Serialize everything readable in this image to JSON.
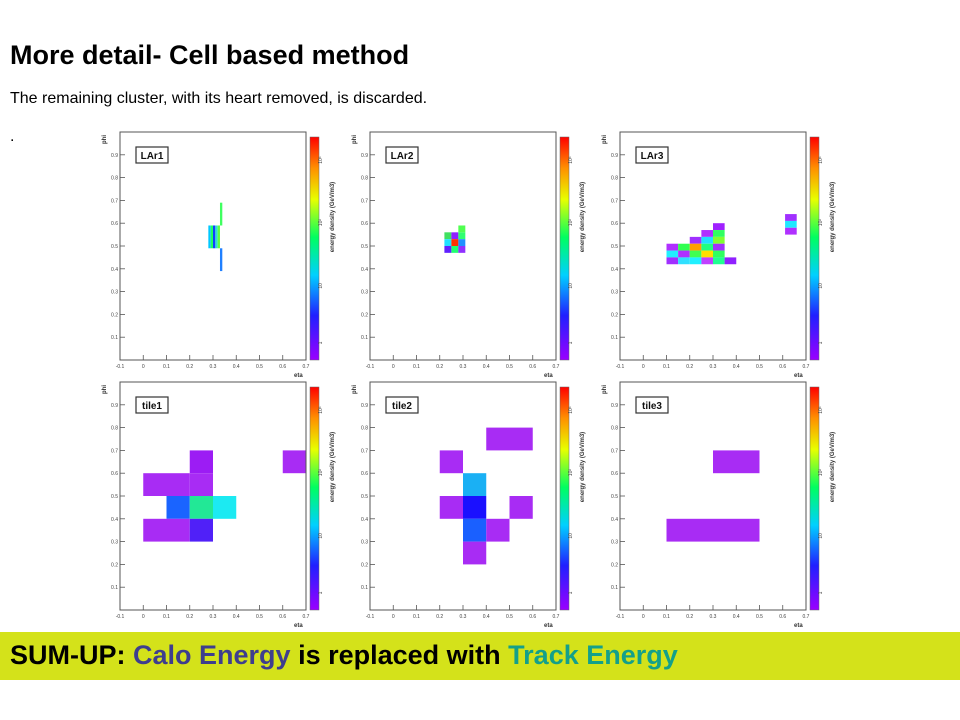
{
  "slide": {
    "title": "More detail- Cell based method",
    "subtitle": "The remaining cluster, with its heart removed, is discarded.",
    "bullet_dot": "."
  },
  "summary": {
    "prefix": "SUM-UP:",
    "calo": "Calo Energy",
    "middle": "is replaced with",
    "track": "Track Energy",
    "colors": {
      "banner": "#d4e21a",
      "calo": "#3e3e8e",
      "track": "#14a08a"
    }
  },
  "chart_data": [
    {
      "type": "heatmap",
      "title": "LAr1",
      "xlabel": "eta",
      "ylabel": "phi",
      "zlabel": "energy density (GeV/m3)",
      "xlim": [
        -0.1,
        0.7
      ],
      "ylim": [
        0,
        1.0
      ],
      "xticks": [
        -0.1,
        0,
        0.1,
        0.2,
        0.3,
        0.4,
        0.5,
        0.6,
        0.7
      ],
      "yticks": [
        0.1,
        0.2,
        0.3,
        0.4,
        0.5,
        0.6,
        0.7,
        0.8,
        0.9
      ],
      "colorbar_ticks": [
        "1",
        "10",
        "10²",
        "10³"
      ],
      "cells": [
        {
          "eta0": 0.28,
          "eta1": 0.29,
          "phi0": 0.49,
          "phi1": 0.59,
          "color": "#00c8ff"
        },
        {
          "eta0": 0.29,
          "eta1": 0.3,
          "phi0": 0.49,
          "phi1": 0.59,
          "color": "#20ff60"
        },
        {
          "eta0": 0.3,
          "eta1": 0.31,
          "phi0": 0.49,
          "phi1": 0.59,
          "color": "#1040ff"
        },
        {
          "eta0": 0.31,
          "eta1": 0.32,
          "phi0": 0.49,
          "phi1": 0.59,
          "color": "#30e0d0"
        },
        {
          "eta0": 0.32,
          "eta1": 0.33,
          "phi0": 0.49,
          "phi1": 0.59,
          "color": "#60ff40"
        },
        {
          "eta0": 0.33,
          "eta1": 0.34,
          "phi0": 0.59,
          "phi1": 0.69,
          "color": "#40ff60"
        },
        {
          "eta0": 0.33,
          "eta1": 0.34,
          "phi0": 0.39,
          "phi1": 0.49,
          "color": "#2080ff"
        }
      ]
    },
    {
      "type": "heatmap",
      "title": "LAr2",
      "xlabel": "eta",
      "ylabel": "phi",
      "zlabel": "energy density (GeV/m3)",
      "xlim": [
        -0.1,
        0.7
      ],
      "ylim": [
        0,
        1.0
      ],
      "xticks": [
        -0.1,
        0,
        0.1,
        0.2,
        0.3,
        0.4,
        0.5,
        0.6,
        0.7
      ],
      "yticks": [
        0.1,
        0.2,
        0.3,
        0.4,
        0.5,
        0.6,
        0.7,
        0.8,
        0.9
      ],
      "colorbar_ticks": [
        "1",
        "10",
        "10²",
        "10³"
      ],
      "cells": [
        {
          "eta0": 0.22,
          "eta1": 0.25,
          "phi0": 0.53,
          "phi1": 0.56,
          "color": "#40e060"
        },
        {
          "eta0": 0.25,
          "eta1": 0.28,
          "phi0": 0.53,
          "phi1": 0.56,
          "color": "#9020ff"
        },
        {
          "eta0": 0.28,
          "eta1": 0.31,
          "phi0": 0.53,
          "phi1": 0.56,
          "color": "#30ff70"
        },
        {
          "eta0": 0.28,
          "eta1": 0.31,
          "phi0": 0.56,
          "phi1": 0.59,
          "color": "#50ff50"
        },
        {
          "eta0": 0.22,
          "eta1": 0.25,
          "phi0": 0.5,
          "phi1": 0.53,
          "color": "#20e0ff"
        },
        {
          "eta0": 0.25,
          "eta1": 0.28,
          "phi0": 0.5,
          "phi1": 0.53,
          "color": "#ff3000"
        },
        {
          "eta0": 0.28,
          "eta1": 0.31,
          "phi0": 0.5,
          "phi1": 0.53,
          "color": "#2090ff"
        },
        {
          "eta0": 0.22,
          "eta1": 0.25,
          "phi0": 0.47,
          "phi1": 0.5,
          "color": "#6020ff"
        },
        {
          "eta0": 0.25,
          "eta1": 0.28,
          "phi0": 0.47,
          "phi1": 0.5,
          "color": "#20ff70"
        },
        {
          "eta0": 0.28,
          "eta1": 0.31,
          "phi0": 0.47,
          "phi1": 0.5,
          "color": "#9030ff"
        }
      ]
    },
    {
      "type": "heatmap",
      "title": "LAr3",
      "xlabel": "eta",
      "ylabel": "phi",
      "zlabel": "energy density (GeV/m3)",
      "xlim": [
        -0.1,
        0.7
      ],
      "ylim": [
        0,
        1.0
      ],
      "xticks": [
        -0.1,
        0,
        0.1,
        0.2,
        0.3,
        0.4,
        0.5,
        0.6,
        0.7
      ],
      "yticks": [
        0.1,
        0.2,
        0.3,
        0.4,
        0.5,
        0.6,
        0.7,
        0.8,
        0.9
      ],
      "colorbar_ticks": [
        "1",
        "10",
        "10²",
        "10³"
      ],
      "cells": [
        {
          "eta0": 0.3,
          "eta1": 0.35,
          "phi0": 0.57,
          "phi1": 0.6,
          "color": "#a020ff"
        },
        {
          "eta0": 0.25,
          "eta1": 0.3,
          "phi0": 0.54,
          "phi1": 0.57,
          "color": "#b030ff"
        },
        {
          "eta0": 0.3,
          "eta1": 0.35,
          "phi0": 0.54,
          "phi1": 0.57,
          "color": "#30ff60"
        },
        {
          "eta0": 0.2,
          "eta1": 0.25,
          "phi0": 0.51,
          "phi1": 0.54,
          "color": "#a030ff"
        },
        {
          "eta0": 0.25,
          "eta1": 0.3,
          "phi0": 0.51,
          "phi1": 0.54,
          "color": "#20e0ff"
        },
        {
          "eta0": 0.3,
          "eta1": 0.35,
          "phi0": 0.51,
          "phi1": 0.54,
          "color": "#80ff30"
        },
        {
          "eta0": 0.1,
          "eta1": 0.15,
          "phi0": 0.48,
          "phi1": 0.51,
          "color": "#b030ff"
        },
        {
          "eta0": 0.15,
          "eta1": 0.2,
          "phi0": 0.48,
          "phi1": 0.51,
          "color": "#30ff50"
        },
        {
          "eta0": 0.2,
          "eta1": 0.25,
          "phi0": 0.48,
          "phi1": 0.51,
          "color": "#ffa000"
        },
        {
          "eta0": 0.25,
          "eta1": 0.3,
          "phi0": 0.48,
          "phi1": 0.51,
          "color": "#20ff80"
        },
        {
          "eta0": 0.3,
          "eta1": 0.35,
          "phi0": 0.48,
          "phi1": 0.51,
          "color": "#a030ff"
        },
        {
          "eta0": 0.1,
          "eta1": 0.15,
          "phi0": 0.45,
          "phi1": 0.48,
          "color": "#20f0ff"
        },
        {
          "eta0": 0.15,
          "eta1": 0.2,
          "phi0": 0.45,
          "phi1": 0.48,
          "color": "#b030ff"
        },
        {
          "eta0": 0.2,
          "eta1": 0.25,
          "phi0": 0.45,
          "phi1": 0.48,
          "color": "#40ff50"
        },
        {
          "eta0": 0.25,
          "eta1": 0.3,
          "phi0": 0.45,
          "phi1": 0.48,
          "color": "#ffe000"
        },
        {
          "eta0": 0.3,
          "eta1": 0.35,
          "phi0": 0.45,
          "phi1": 0.48,
          "color": "#30ff60"
        },
        {
          "eta0": 0.1,
          "eta1": 0.15,
          "phi0": 0.42,
          "phi1": 0.45,
          "color": "#a030ff"
        },
        {
          "eta0": 0.15,
          "eta1": 0.2,
          "phi0": 0.42,
          "phi1": 0.45,
          "color": "#30e0ff"
        },
        {
          "eta0": 0.2,
          "eta1": 0.25,
          "phi0": 0.42,
          "phi1": 0.45,
          "color": "#20f0ff"
        },
        {
          "eta0": 0.25,
          "eta1": 0.3,
          "phi0": 0.42,
          "phi1": 0.45,
          "color": "#c040ff"
        },
        {
          "eta0": 0.3,
          "eta1": 0.35,
          "phi0": 0.42,
          "phi1": 0.45,
          "color": "#20ff90"
        },
        {
          "eta0": 0.35,
          "eta1": 0.4,
          "phi0": 0.42,
          "phi1": 0.45,
          "color": "#9020ff"
        },
        {
          "eta0": 0.61,
          "eta1": 0.66,
          "phi0": 0.61,
          "phi1": 0.64,
          "color": "#a030ff"
        },
        {
          "eta0": 0.61,
          "eta1": 0.66,
          "phi0": 0.58,
          "phi1": 0.61,
          "color": "#20e8ff"
        },
        {
          "eta0": 0.61,
          "eta1": 0.66,
          "phi0": 0.55,
          "phi1": 0.58,
          "color": "#b030ff"
        }
      ]
    },
    {
      "type": "heatmap",
      "title": "tile1",
      "xlabel": "eta",
      "ylabel": "phi",
      "zlabel": "energy density (GeV/m3)",
      "xlim": [
        -0.1,
        0.7
      ],
      "ylim": [
        0,
        1.0
      ],
      "xticks": [
        -0.1,
        0,
        0.1,
        0.2,
        0.3,
        0.4,
        0.5,
        0.6,
        0.7
      ],
      "yticks": [
        0.1,
        0.2,
        0.3,
        0.4,
        0.5,
        0.6,
        0.7,
        0.8,
        0.9
      ],
      "colorbar_ticks": [
        "1",
        "10",
        "10²",
        "10³"
      ],
      "cells": [
        {
          "eta0": 0.2,
          "eta1": 0.3,
          "phi0": 0.6,
          "phi1": 0.7,
          "color": "#9c1cf4"
        },
        {
          "eta0": 0.0,
          "eta1": 0.1,
          "phi0": 0.5,
          "phi1": 0.6,
          "color": "#a82cf4"
        },
        {
          "eta0": 0.1,
          "eta1": 0.2,
          "phi0": 0.5,
          "phi1": 0.6,
          "color": "#a82cf4"
        },
        {
          "eta0": 0.2,
          "eta1": 0.3,
          "phi0": 0.5,
          "phi1": 0.6,
          "color": "#a82cf4"
        },
        {
          "eta0": 0.1,
          "eta1": 0.2,
          "phi0": 0.4,
          "phi1": 0.5,
          "color": "#1a64ff"
        },
        {
          "eta0": 0.2,
          "eta1": 0.3,
          "phi0": 0.4,
          "phi1": 0.5,
          "color": "#22e896"
        },
        {
          "eta0": 0.3,
          "eta1": 0.4,
          "phi0": 0.4,
          "phi1": 0.5,
          "color": "#1ceaf2"
        },
        {
          "eta0": 0.0,
          "eta1": 0.1,
          "phi0": 0.3,
          "phi1": 0.4,
          "color": "#a82cf4"
        },
        {
          "eta0": 0.1,
          "eta1": 0.2,
          "phi0": 0.3,
          "phi1": 0.4,
          "color": "#a82cf4"
        },
        {
          "eta0": 0.2,
          "eta1": 0.3,
          "phi0": 0.3,
          "phi1": 0.4,
          "color": "#5020f8"
        },
        {
          "eta0": 0.6,
          "eta1": 0.7,
          "phi0": 0.6,
          "phi1": 0.7,
          "color": "#a82cf4"
        }
      ]
    },
    {
      "type": "heatmap",
      "title": "tile2",
      "xlabel": "eta",
      "ylabel": "phi",
      "zlabel": "energy density (GeV/m3)",
      "xlim": [
        -0.1,
        0.7
      ],
      "ylim": [
        0,
        1.0
      ],
      "xticks": [
        -0.1,
        0,
        0.1,
        0.2,
        0.3,
        0.4,
        0.5,
        0.6,
        0.7
      ],
      "yticks": [
        0.1,
        0.2,
        0.3,
        0.4,
        0.5,
        0.6,
        0.7,
        0.8,
        0.9
      ],
      "colorbar_ticks": [
        "1",
        "10",
        "10²",
        "10³"
      ],
      "cells": [
        {
          "eta0": 0.4,
          "eta1": 0.6,
          "phi0": 0.7,
          "phi1": 0.8,
          "color": "#a82cf4"
        },
        {
          "eta0": 0.2,
          "eta1": 0.3,
          "phi0": 0.6,
          "phi1": 0.7,
          "color": "#a82cf4"
        },
        {
          "eta0": 0.3,
          "eta1": 0.4,
          "phi0": 0.5,
          "phi1": 0.6,
          "color": "#1ab0f4"
        },
        {
          "eta0": 0.2,
          "eta1": 0.3,
          "phi0": 0.4,
          "phi1": 0.5,
          "color": "#a82cf4"
        },
        {
          "eta0": 0.3,
          "eta1": 0.4,
          "phi0": 0.4,
          "phi1": 0.5,
          "color": "#1a10ff"
        },
        {
          "eta0": 0.5,
          "eta1": 0.6,
          "phi0": 0.4,
          "phi1": 0.5,
          "color": "#a82cf4"
        },
        {
          "eta0": 0.3,
          "eta1": 0.4,
          "phi0": 0.3,
          "phi1": 0.4,
          "color": "#1a60ff"
        },
        {
          "eta0": 0.4,
          "eta1": 0.5,
          "phi0": 0.3,
          "phi1": 0.4,
          "color": "#a82cf4"
        },
        {
          "eta0": 0.3,
          "eta1": 0.4,
          "phi0": 0.2,
          "phi1": 0.3,
          "color": "#a82cf4"
        }
      ]
    },
    {
      "type": "heatmap",
      "title": "tile3",
      "xlabel": "eta",
      "ylabel": "phi",
      "zlabel": "energy density (GeV/m3)",
      "xlim": [
        -0.1,
        0.7
      ],
      "ylim": [
        0,
        1.0
      ],
      "xticks": [
        -0.1,
        0,
        0.1,
        0.2,
        0.3,
        0.4,
        0.5,
        0.6,
        0.7
      ],
      "yticks": [
        0.1,
        0.2,
        0.3,
        0.4,
        0.5,
        0.6,
        0.7,
        0.8,
        0.9
      ],
      "colorbar_ticks": [
        "1",
        "10",
        "10²",
        "10³"
      ],
      "cells": [
        {
          "eta0": 0.3,
          "eta1": 0.5,
          "phi0": 0.6,
          "phi1": 0.7,
          "color": "#a82cf4"
        },
        {
          "eta0": 0.1,
          "eta1": 0.5,
          "phi0": 0.3,
          "phi1": 0.4,
          "color": "#a82cf4"
        }
      ]
    }
  ]
}
